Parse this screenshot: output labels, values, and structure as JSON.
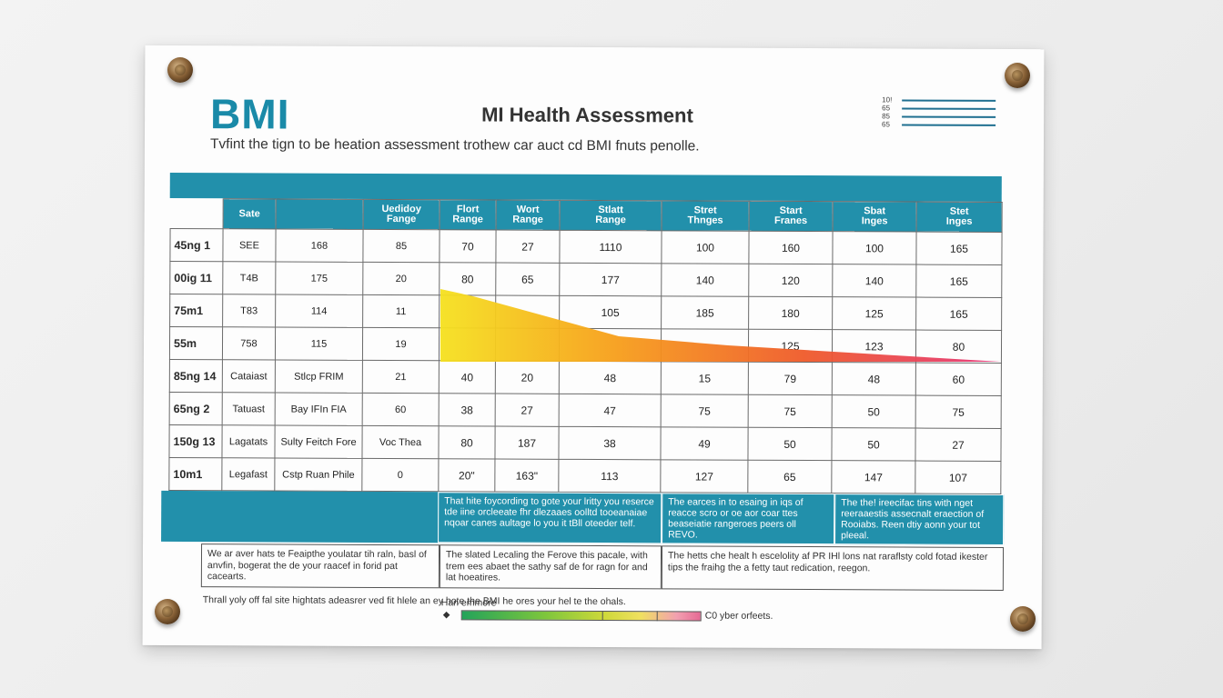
{
  "header": {
    "logo_text": "BMI",
    "title": "MI Health Assessment",
    "subtitle": "Tvfint the tign to be heation assessment trothew car auct cd BMI fnuts penolle.",
    "mini_legend": [
      "10!",
      "65",
      "85",
      "65"
    ]
  },
  "table": {
    "headers": [
      {
        "l1": "Sate",
        "l2": ""
      },
      {
        "l1": "",
        "l2": ""
      },
      {
        "l1": "Uedidoy",
        "l2": "Fange"
      },
      {
        "l1": "Flort",
        "l2": "Range"
      },
      {
        "l1": "Wort",
        "l2": "Range"
      },
      {
        "l1": "Stlatt",
        "l2": "Range"
      },
      {
        "l1": "Stret",
        "l2": "Thnges"
      },
      {
        "l1": "Start",
        "l2": "Franes"
      },
      {
        "l1": "Sbat",
        "l2": "Inges"
      },
      {
        "l1": "Stet",
        "l2": "Inges"
      }
    ],
    "rows": [
      [
        "45ng 1",
        "SEE",
        "168",
        "85",
        "70",
        "27",
        "1110",
        "100",
        "160",
        "100",
        "165"
      ],
      [
        "00ig 11",
        "T4B",
        "175",
        "20",
        "80",
        "65",
        "177",
        "140",
        "120",
        "140",
        "165"
      ],
      [
        "75m1",
        "T83",
        "114",
        "11",
        "",
        "",
        "105",
        "185",
        "180",
        "125",
        "165"
      ],
      [
        "55m",
        "758",
        "115",
        "19",
        "",
        "",
        "",
        "",
        "125",
        "123",
        "80"
      ],
      [
        "85ng 14",
        "Cataiast",
        "Stlcp FRIM",
        "21",
        "40",
        "20",
        "48",
        "15",
        "79",
        "48",
        "60"
      ],
      [
        "65ng 2",
        "Tatuast",
        "Bay IFIn FIA",
        "60",
        "38",
        "27",
        "47",
        "75",
        "75",
        "50",
        "75"
      ],
      [
        "150g 13",
        "Lagatats",
        "Sulty Feitch Fore",
        "Voc Thea",
        "80",
        "187",
        "38",
        "49",
        "50",
        "50",
        "27"
      ],
      [
        "10m1",
        "Legafast",
        "Cstp Ruan Phile",
        "0",
        "20\"",
        "163\"",
        "113",
        "127",
        "65",
        "147",
        "107"
      ]
    ]
  },
  "info_boxes": [
    "That hite foycording to gote your lritty you reserce tde iine orcleeate fhr dlezaaes oolltd tooeanaiae nqoar canes aultage lo you it tBll oteeder telf.",
    "The earces in to esaing in iqs of reacce scro or oe aor coar ttes beaseiatie rangeroes peers oll REVO.",
    "The the! ireecifac tins with nget reeraaestis assecnalt eraection of Rooiabs. Reen dtiy aonn your tot pleeal."
  ],
  "notes": [
    "We ar aver hats te Feaipthe youlatar tih raln, basl of anvfin, bogerat the de your raacef in forid pat cacearts.",
    "The slated Lecaling the Ferove this pacale, with trem ees abaet the sathy saf de for ragn for and lat hoeatires.",
    "The hetts che healt h escelolity af PR IHl lons nat raraflsty cold fotad ikester tips the fraihg the a fetty taut redication, reegon."
  ],
  "footer": "Thrall yoly off fal site hightats adeasrer ved fit hlele an ey hote the BMI he ores your hel te the ohals.",
  "scale": {
    "label": "Han emmore",
    "marker": "◆",
    "end_label": "C0 yber orfeets."
  },
  "colors": {
    "accent": "#2290ab",
    "logo": "#1a8aa8",
    "gradient": [
      "#f5e11f",
      "#f7a11a",
      "#ef5a2a",
      "#e5357a"
    ]
  }
}
